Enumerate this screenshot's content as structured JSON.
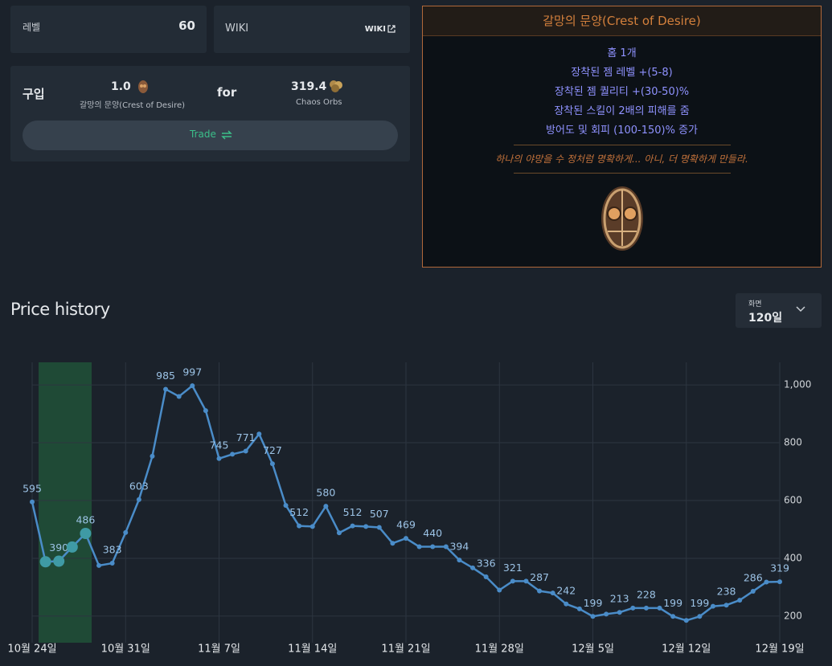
{
  "level": {
    "label": "레벨",
    "value": 60
  },
  "wiki": {
    "label": "WIKI",
    "link": "WIKI"
  },
  "buy": {
    "label": "구입",
    "quantity": "1.0",
    "item": "갈망의 문양(Crest of Desire)",
    "for": "for",
    "price": 319.4,
    "currency": "Chaos Orbs",
    "button": "Trade"
  },
  "item_card": {
    "name": "갈망의 문양(Crest of Desire)",
    "mods": [
      "홈 1개",
      "장착된 젬 레벨 +(5-8)",
      "장착된 젬 퀄리티 +(30-50)%",
      "장착된 스킬이 2배의 피해를 줌",
      "방어도 및 회피 (100-150)% 증가"
    ],
    "flavor": "하나의 야망을 수 정처럼 명확하게... 아니, 더 명확하게 만들라."
  },
  "price_history": {
    "title": "Price history",
    "range_label": "화면",
    "range": "120일"
  },
  "chart_data": {
    "type": "line",
    "categories": [
      "10월 24일",
      null,
      null,
      null,
      null,
      null,
      null,
      "10월 31일",
      null,
      null,
      null,
      null,
      null,
      null,
      "11월 7일",
      null,
      null,
      null,
      null,
      null,
      null,
      "11월 14일",
      null,
      null,
      null,
      null,
      null,
      null,
      "11월 21일",
      null,
      null,
      null,
      null,
      null,
      null,
      "11월 28일",
      null,
      null,
      null,
      null,
      null,
      null,
      "12월 5일",
      null,
      null,
      null,
      null,
      null,
      null,
      "12월 12일",
      null,
      null,
      null,
      null,
      null,
      null,
      "12월 19일"
    ],
    "series": [
      {
        "name": "Chaos Orbs",
        "color": "#4a8cc8",
        "values": [
          595,
          388,
          390,
          439,
          486,
          375,
          383,
          489,
          603,
          753,
          985,
          960,
          997,
          911,
          745,
          760,
          771,
          830,
          727,
          583,
          512,
          510,
          580,
          488,
          512,
          510,
          507,
          452,
          469,
          440,
          440,
          440,
          394,
          367,
          336,
          290,
          321,
          321,
          287,
          280,
          242,
          225,
          199,
          207,
          213,
          228,
          228,
          228,
          199,
          185,
          199,
          234,
          238,
          255,
          286,
          318,
          319
        ]
      }
    ],
    "ylim": [
      108,
      1078
    ],
    "yticks": [
      200,
      400,
      600,
      800,
      {
        "value": 1000,
        "label": "1,000"
      }
    ],
    "grid": true
  }
}
